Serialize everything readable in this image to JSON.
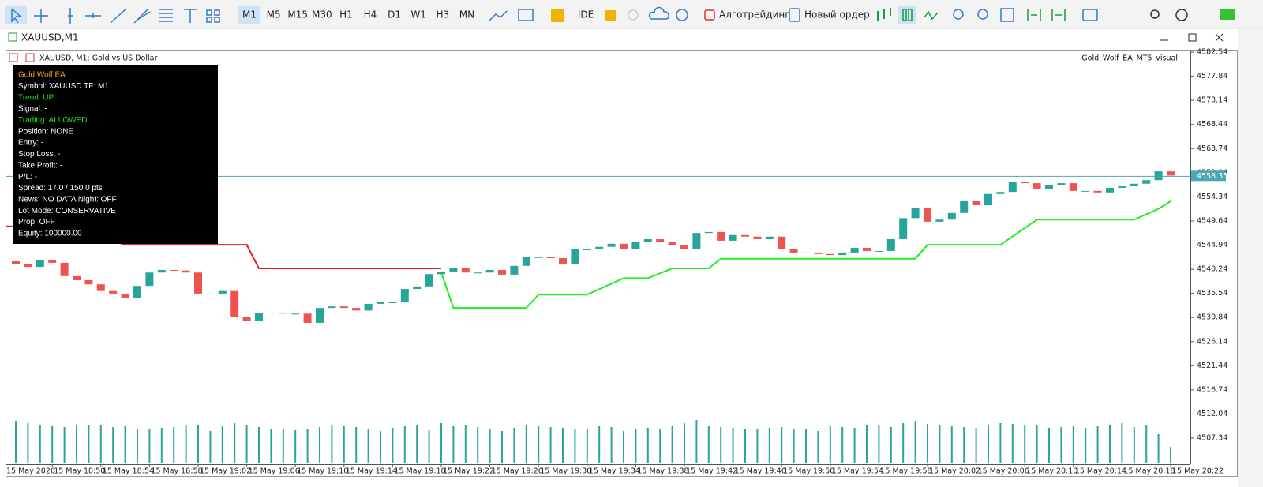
{
  "toolbar": {
    "timeframes": [
      "M1",
      "M5",
      "M15",
      "M30",
      "H1",
      "H4",
      "D1",
      "W1",
      "H3",
      "MN"
    ],
    "active_timeframe": 0,
    "ide": "IDE",
    "algo_trading": "Алготрейдинг",
    "new_order": "Новый ордер"
  },
  "window_title": "XAUUSD,M1",
  "chart_header": "XAUUSD, M1:  Gold vs US Dollar",
  "ea_name": "Gold_Wolf_EA_MT5_visual",
  "info_panel": [
    {
      "text": "Gold Wolf EA",
      "color": "#f0a020"
    },
    {
      "text": "Symbol: XAUUSD  TF: M1",
      "color": "#ffffff"
    },
    {
      "text": "Trend: UP",
      "color": "#22dd22"
    },
    {
      "text": "Signal: -",
      "color": "#ffffff"
    },
    {
      "text": "Trading: ALLOWED",
      "color": "#22dd22"
    },
    {
      "text": "Position: NONE",
      "color": "#ffffff"
    },
    {
      "text": "Entry: -",
      "color": "#ffffff"
    },
    {
      "text": "Stop Loss: -",
      "color": "#ffffff"
    },
    {
      "text": "Take Profit: -",
      "color": "#ffffff"
    },
    {
      "text": "P/L: -",
      "color": "#ffffff"
    },
    {
      "text": "Spread: 17.0 / 150.0 pts",
      "color": "#ffffff"
    },
    {
      "text": "News: NO DATA  Night: OFF",
      "color": "#ffffff"
    },
    {
      "text": "Lot Mode: CONSERVATIVE",
      "color": "#ffffff"
    },
    {
      "text": "Prop: OFF",
      "color": "#ffffff"
    },
    {
      "text": "Equity: 100000.00",
      "color": "#ffffff"
    }
  ],
  "chart_data": {
    "type": "candlestick",
    "ylim": [
      4502.27,
      4582.85
    ],
    "yticks": [
      4582.54,
      4577.84,
      4573.14,
      4568.44,
      4563.74,
      4559.04,
      4554.34,
      4549.64,
      4544.94,
      4540.24,
      4535.54,
      4530.84,
      4526.14,
      4521.44,
      4516.74,
      4512.04,
      4507.34
    ],
    "time_labels": [
      "15 May 2026",
      "15 May 18:50",
      "15 May 18:54",
      "15 May 18:58",
      "15 May 19:02",
      "15 May 19:06",
      "15 May 19:10",
      "15 May 19:14",
      "15 May 19:18",
      "15 May 19:22",
      "15 May 19:26",
      "15 May 19:30",
      "15 May 19:34",
      "15 May 19:38",
      "15 May 19:42",
      "15 May 19:46",
      "15 May 19:50",
      "15 May 19:54",
      "15 May 19:58",
      "15 May 20:02",
      "15 May 20:06",
      "15 May 20:10",
      "15 May 20:14",
      "15 May 20:18",
      "15 May 20:22"
    ],
    "current_price": 4558.35,
    "current_price_color": "#4aa7b0",
    "colors": {
      "up": "#26a69a",
      "down": "#ef5350",
      "volume": "#26a69a"
    },
    "open": [
      4541.8,
      4541.2,
      4540.7,
      4542,
      4541.5,
      4538.9,
      4538.1,
      4537.3,
      4536,
      4535.5,
      4534.7,
      4537,
      4539.6,
      4540.1,
      4540,
      4539.6,
      4535.5,
      4535.5,
      4536,
      4530.9,
      4530.1,
      4531.8,
      4531.8,
      4531.6,
      4531.6,
      4529.8,
      4532.7,
      4533,
      4532.7,
      4532.2,
      4533.5,
      4533.8,
      4533.8,
      4536.4,
      4536.9,
      4539.3,
      4539.8,
      4540.4,
      4539.6,
      4539.6,
      4540.1,
      4539.2,
      4540.9,
      4542.6,
      4542.6,
      4542.4,
      4541.2,
      4544.1,
      4544.1,
      4544.6,
      4545.2,
      4544.1,
      4545.6,
      4546.1,
      4545.6,
      4545,
      4544.1,
      4547.3,
      4547.5,
      4545.8,
      4546.9,
      4546.6,
      4546.1,
      4546.6,
      4544.1,
      4543.5,
      4543.5,
      4543.2,
      4543,
      4543.5,
      4544.4,
      4543.8,
      4543.8,
      4546.1,
      4550.2,
      4552.1,
      4549.5,
      4549.9,
      4551.2,
      4553.5,
      4552.7,
      4554.9,
      4555.3,
      4557.2,
      4557,
      4555.8,
      4556.6,
      4557,
      4555.5,
      4555.5,
      4555.2,
      4556.1,
      4556.4,
      4556.9,
      4557.6,
      4559.3
    ],
    "close": [
      4541.2,
      4540.7,
      4542,
      4541.5,
      4538.9,
      4538.1,
      4537.3,
      4536,
      4535.5,
      4534.7,
      4537,
      4539.6,
      4540.1,
      4540,
      4539.6,
      4535.5,
      4535.5,
      4536,
      4530.9,
      4530.1,
      4531.8,
      4531.8,
      4531.6,
      4531.6,
      4529.8,
      4532.7,
      4533,
      4532.7,
      4532.2,
      4533.5,
      4533.8,
      4533.8,
      4536.4,
      4536.9,
      4539.3,
      4539.8,
      4540.4,
      4539.6,
      4539.6,
      4540.1,
      4539.2,
      4540.9,
      4542.6,
      4542.6,
      4542.4,
      4541.2,
      4544.1,
      4544.1,
      4544.6,
      4545.2,
      4544.1,
      4545.6,
      4546.1,
      4545.6,
      4545,
      4544.1,
      4547.3,
      4547.5,
      4545.8,
      4546.9,
      4546.6,
      4546.1,
      4546.6,
      4544.1,
      4543.5,
      4543.5,
      4543.2,
      4543,
      4543.5,
      4544.4,
      4543.8,
      4543.8,
      4546.1,
      4550.2,
      4552.1,
      4549.5,
      4549.9,
      4551.2,
      4553.5,
      4552.7,
      4554.9,
      4555.3,
      4557.2,
      4557,
      4555.8,
      4556.6,
      4557,
      4555.5,
      4555.5,
      4555.2,
      4556.1,
      4556.4,
      4556.9,
      4557.6,
      4559.3,
      4558.5
    ],
    "volumes": [
      52,
      50,
      48,
      46,
      45,
      47,
      48,
      48,
      45,
      46,
      43,
      42,
      44,
      45,
      48,
      47,
      40,
      46,
      50,
      47,
      45,
      43,
      42,
      41,
      42,
      45,
      48,
      46,
      45,
      42,
      40,
      44,
      46,
      47,
      41,
      50,
      46,
      48,
      45,
      42,
      40,
      44,
      47,
      46,
      45,
      44,
      42,
      43,
      46,
      45,
      40,
      42,
      44,
      43,
      46,
      50,
      54,
      46,
      45,
      44,
      43,
      42,
      44,
      45,
      42,
      43,
      40,
      46,
      45,
      44,
      47,
      48,
      45,
      50,
      52,
      49,
      47,
      46,
      45,
      44,
      48,
      50,
      49,
      48,
      47,
      44,
      45,
      46,
      44,
      46,
      48,
      50,
      45,
      47,
      36,
      20
    ],
    "red_line": {
      "color": "#e02020",
      "x": [
        -1,
        5,
        9,
        19,
        20,
        35
      ],
      "values": [
        4548.6,
        4548.3,
        4545,
        4545,
        4540.4,
        4540.4
      ]
    },
    "green_line": {
      "color": "#22ee22",
      "x": [
        35,
        36,
        42,
        43,
        47,
        50,
        52,
        54,
        57,
        58,
        74,
        75,
        81,
        84,
        92,
        94,
        95
      ],
      "values": [
        4539.6,
        4532.7,
        4532.7,
        4535.3,
        4535.3,
        4538.5,
        4538.5,
        4540.4,
        4540.4,
        4542.3,
        4542.3,
        4545,
        4545,
        4549.9,
        4549.9,
        4552,
        4553.5
      ]
    }
  }
}
